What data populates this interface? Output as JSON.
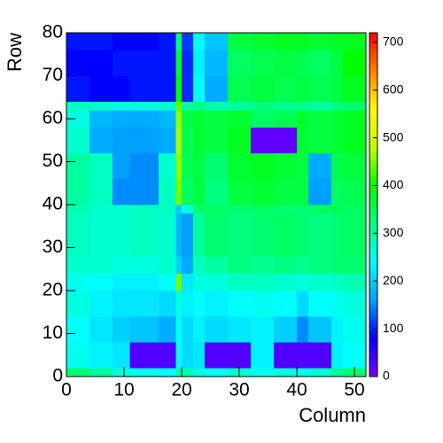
{
  "chart_data": {
    "type": "heatmap",
    "x_label": "Column",
    "y_label": "Row",
    "xbins": [
      0,
      4,
      8,
      11,
      16,
      19,
      20,
      22,
      24,
      28,
      32,
      36,
      40,
      42,
      46,
      48,
      52
    ],
    "ybins": [
      0,
      2,
      8,
      14,
      20,
      24,
      28,
      38,
      40,
      46,
      52,
      58,
      62,
      64,
      70,
      76,
      80
    ],
    "z": [
      [
        330,
        300,
        260,
        250,
        240,
        300,
        290,
        260,
        240,
        270,
        250,
        260,
        250,
        270,
        300,
        330
      ],
      [
        250,
        230,
        220,
        30,
        30,
        240,
        210,
        220,
        30,
        30,
        230,
        30,
        30,
        30,
        230,
        240
      ],
      [
        240,
        220,
        200,
        190,
        170,
        250,
        210,
        230,
        210,
        220,
        230,
        200,
        150,
        190,
        230,
        250
      ],
      [
        260,
        230,
        220,
        220,
        210,
        260,
        230,
        240,
        230,
        240,
        250,
        240,
        210,
        240,
        250,
        260
      ],
      [
        250,
        240,
        230,
        230,
        240,
        450,
        220,
        260,
        260,
        280,
        280,
        270,
        260,
        270,
        280,
        290
      ],
      [
        270,
        270,
        260,
        260,
        270,
        200,
        170,
        280,
        300,
        320,
        310,
        320,
        310,
        320,
        330,
        330
      ],
      [
        280,
        270,
        270,
        280,
        270,
        180,
        160,
        300,
        330,
        320,
        330,
        340,
        330,
        320,
        330,
        340
      ],
      [
        290,
        270,
        270,
        280,
        280,
        200,
        260,
        330,
        340,
        330,
        340,
        330,
        330,
        340,
        350,
        340
      ],
      [
        300,
        280,
        150,
        150,
        280,
        450,
        340,
        360,
        320,
        360,
        370,
        360,
        360,
        160,
        340,
        350
      ],
      [
        300,
        280,
        160,
        150,
        270,
        460,
        350,
        360,
        330,
        370,
        380,
        370,
        360,
        170,
        350,
        360
      ],
      [
        270,
        170,
        160,
        160,
        170,
        470,
        350,
        370,
        360,
        380,
        20,
        20,
        370,
        360,
        370,
        380
      ],
      [
        260,
        180,
        170,
        170,
        180,
        460,
        360,
        370,
        360,
        370,
        340,
        350,
        370,
        360,
        370,
        380
      ],
      [
        280,
        270,
        260,
        260,
        270,
        440,
        300,
        310,
        290,
        300,
        320,
        310,
        310,
        300,
        320,
        330
      ],
      [
        90,
        80,
        80,
        90,
        90,
        400,
        100,
        240,
        170,
        350,
        360,
        350,
        360,
        350,
        360,
        380
      ],
      [
        80,
        80,
        90,
        90,
        90,
        380,
        100,
        230,
        180,
        340,
        350,
        360,
        350,
        340,
        360,
        400
      ],
      [
        90,
        90,
        80,
        80,
        90,
        330,
        110,
        240,
        190,
        360,
        370,
        380,
        380,
        370,
        380,
        380
      ]
    ],
    "xlim": [
      0,
      52
    ],
    "ylim": [
      0,
      80
    ],
    "zlim": [
      0,
      720
    ],
    "xticks": [
      0,
      10,
      20,
      30,
      40,
      50
    ],
    "yticks": [
      0,
      10,
      20,
      30,
      40,
      50,
      60,
      70,
      80
    ],
    "zticks": [
      0,
      100,
      200,
      300,
      400,
      500,
      600,
      700
    ],
    "palette": [
      "#8000ff",
      "#0000ff",
      "#00a0ff",
      "#00ffff",
      "#00ff80",
      "#00ff00",
      "#c0ff00",
      "#ffff00",
      "#ff8000",
      "#ff0000"
    ]
  }
}
